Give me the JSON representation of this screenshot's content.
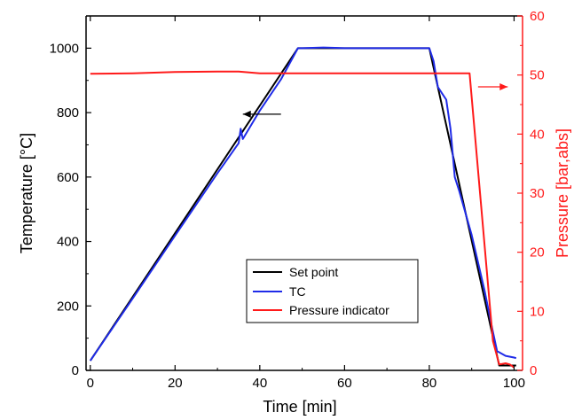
{
  "chart_data": {
    "type": "line",
    "xlabel": "Time [min]",
    "ylabel_left": "Temperature [°C]",
    "ylabel_right": "Pressure [bar,abs]",
    "xlim": [
      -1,
      102
    ],
    "ylim_left": [
      0,
      1100
    ],
    "ylim_right": [
      0,
      60
    ],
    "x_ticks": [
      0,
      20,
      40,
      60,
      80,
      100
    ],
    "y_ticks_left": [
      0,
      200,
      400,
      600,
      800,
      1000
    ],
    "y_ticks_right": [
      0,
      10,
      20,
      30,
      40,
      50,
      60
    ],
    "grid": false,
    "legend_position": "bottom-center",
    "colors": {
      "set_point": "#000000",
      "tc": "#1f2be8",
      "pressure": "#ff1a1a",
      "axis_left": "#000000",
      "axis_right": "#ff1a1a"
    },
    "series": [
      {
        "name": "Set point",
        "axis": "left",
        "color": "#000000",
        "x": [
          0,
          49,
          80,
          96.5,
          100.5
        ],
        "y": [
          30,
          1000,
          1000,
          15,
          15
        ]
      },
      {
        "name": "TC",
        "axis": "left",
        "color": "#1f2be8",
        "x": [
          0,
          10,
          20,
          30,
          35,
          35.5,
          36,
          40,
          45,
          49,
          50,
          55,
          60,
          65,
          70,
          75,
          80,
          81,
          82,
          83,
          84,
          85,
          86,
          87,
          90,
          93,
          95,
          96,
          98,
          100,
          100.5
        ],
        "y": [
          30,
          223,
          418,
          612,
          705,
          750,
          718,
          806,
          903,
          1000,
          1000,
          1002,
          1000,
          1000,
          1000,
          1000,
          1000,
          960,
          880,
          860,
          840,
          750,
          600,
          560,
          420,
          250,
          120,
          60,
          45,
          40,
          38
        ]
      },
      {
        "name": "Pressure indicator",
        "axis": "right",
        "color": "#ff1a1a",
        "x": [
          0,
          10,
          20,
          30,
          35,
          40,
          50,
          60,
          70,
          80,
          89.5,
          95,
          96.5,
          98,
          99,
          100
        ],
        "y": [
          50.2,
          50.3,
          50.5,
          50.6,
          50.6,
          50.3,
          50.3,
          50.3,
          50.3,
          50.3,
          50.3,
          5,
          1,
          1.2,
          1,
          0.5
        ]
      }
    ],
    "annotations": [
      {
        "type": "arrow",
        "direction": "left",
        "at_x": 45,
        "at_y_left": 795,
        "length_x": 9,
        "color": "#000000"
      },
      {
        "type": "arrow",
        "direction": "right",
        "at_x": 91.5,
        "at_y_left": 880,
        "length_x": 7,
        "color": "#ff1a1a"
      }
    ]
  }
}
